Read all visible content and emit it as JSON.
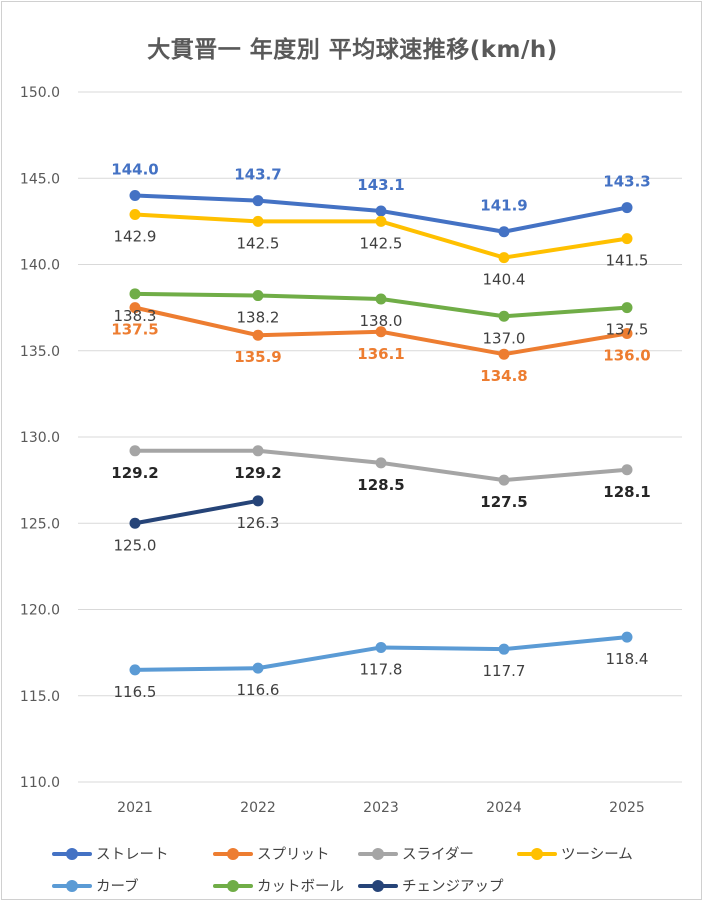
{
  "chart_data": {
    "type": "line",
    "title": "大貫晋一 年度別 平均球速推移(km/h)",
    "categories": [
      "2021",
      "2022",
      "2023",
      "2024",
      "2025"
    ],
    "ylim": [
      110.0,
      150.0
    ],
    "yticks": [
      "110.0",
      "115.0",
      "120.0",
      "125.0",
      "130.0",
      "135.0",
      "140.0",
      "145.0",
      "150.0"
    ],
    "grid": true,
    "legend_position": "bottom",
    "series": [
      {
        "name": "ストレート",
        "color": "#4472C4",
        "values": [
          144.0,
          143.7,
          143.1,
          141.9,
          143.3
        ],
        "labels": [
          "144.0",
          "143.7",
          "143.1",
          "141.9",
          "143.3"
        ],
        "label_position": "above",
        "label_color": "#4472C4",
        "label_bold": true
      },
      {
        "name": "スプリット",
        "color": "#ED7D31",
        "values": [
          137.5,
          135.9,
          136.1,
          134.8,
          136.0
        ],
        "labels": [
          "137.5",
          "135.9",
          "136.1",
          "134.8",
          "136.0"
        ],
        "label_position": "below",
        "label_color": "#ED7D31",
        "label_bold": true
      },
      {
        "name": "スライダー",
        "color": "#A5A5A5",
        "values": [
          129.2,
          129.2,
          128.5,
          127.5,
          128.1
        ],
        "labels": [
          "129.2",
          "129.2",
          "128.5",
          "127.5",
          "128.1"
        ],
        "label_position": "below",
        "label_color": "#262626",
        "label_bold": true
      },
      {
        "name": "ツーシーム",
        "color": "#FFC000",
        "values": [
          142.9,
          142.5,
          142.5,
          140.4,
          141.5
        ],
        "labels": [
          "142.9",
          "142.5",
          "142.5",
          "140.4",
          "141.5"
        ],
        "label_position": "below",
        "label_color": "#404040",
        "label_bold": false
      },
      {
        "name": "カーブ",
        "color": "#5B9BD5",
        "values": [
          116.5,
          116.6,
          117.8,
          117.7,
          118.4
        ],
        "labels": [
          "116.5",
          "116.6",
          "117.8",
          "117.7",
          "118.4"
        ],
        "label_position": "below",
        "label_color": "#404040",
        "label_bold": false
      },
      {
        "name": "カットボール",
        "color": "#70AD47",
        "values": [
          138.3,
          138.2,
          138.0,
          137.0,
          137.5
        ],
        "labels": [
          "138.3",
          "138.2",
          "138.0",
          "137.0",
          "137.5"
        ],
        "label_position": "below",
        "label_color": "#404040",
        "label_bold": false
      },
      {
        "name": "チェンジアップ",
        "color": "#264478",
        "values": [
          125.0,
          126.3,
          null,
          null,
          null
        ],
        "labels": [
          "125.0",
          "126.3",
          "",
          "",
          ""
        ],
        "label_position": "below",
        "label_color": "#404040",
        "label_bold": false
      }
    ]
  }
}
